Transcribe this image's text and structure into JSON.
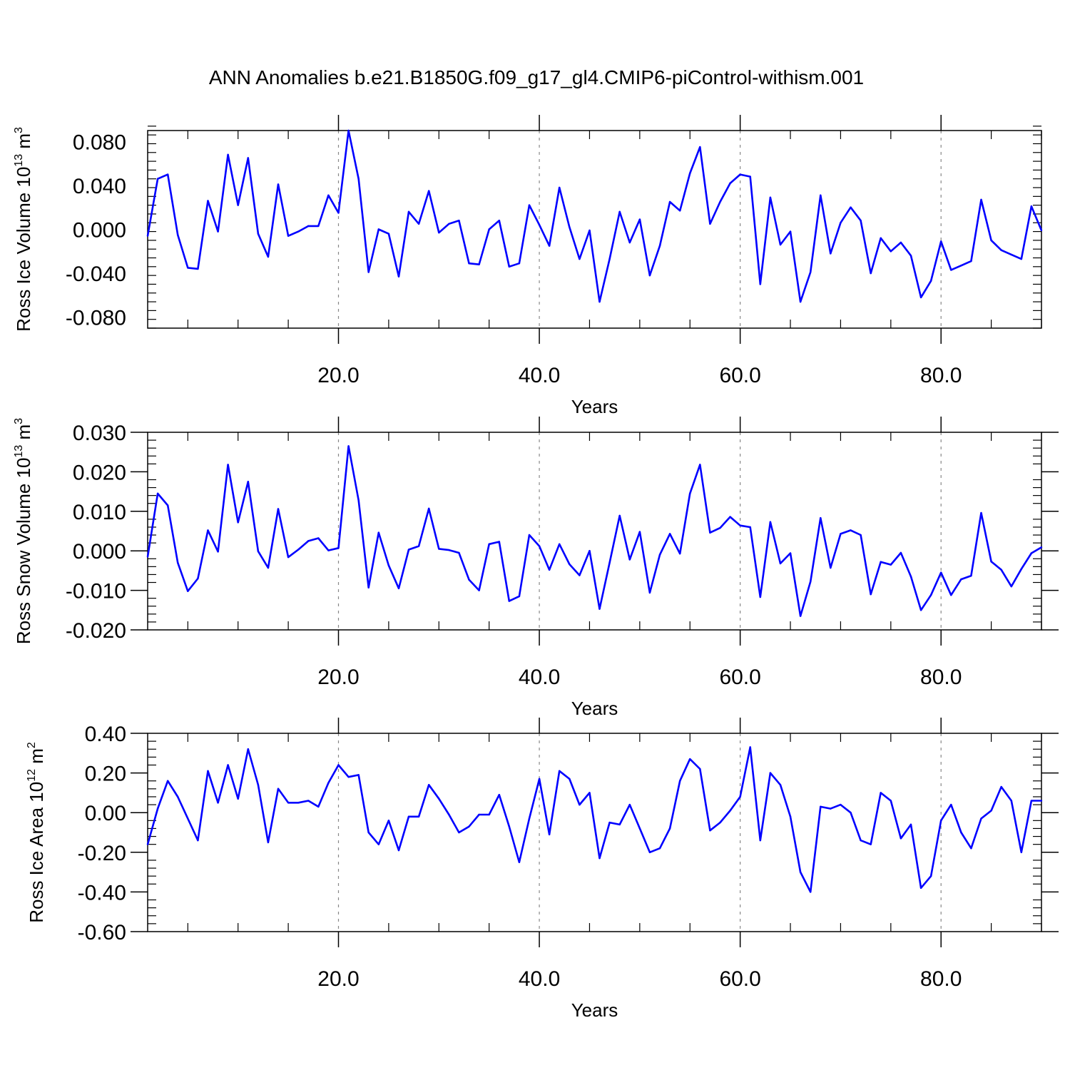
{
  "title": "ANN Anomalies b.e21.B1850G.f09_g17_gl4.CMIP6-piControl-withism.001",
  "colors": {
    "series": "#0000ff",
    "axis": "#000000",
    "grid": "#888888"
  },
  "chart_data": [
    {
      "type": "line",
      "ylabel": "Ross Ice Volume 10",
      "ylabel_exp": "13",
      "ylabel_unit": " m",
      "ylabel_unit_exp": "3",
      "xlabel": "Years",
      "xlim": [
        1,
        90
      ],
      "ylim": [
        -0.09,
        0.09
      ],
      "x_tick_values": [
        20,
        40,
        60,
        80
      ],
      "x_tick_labels": [
        "20.0",
        "40.0",
        "60.0",
        "80.0"
      ],
      "y_tick_values": [
        -0.08,
        -0.04,
        0.0,
        0.04,
        0.08
      ],
      "y_tick_labels": [
        "-0.080",
        "-0.040",
        "0.000",
        "0.040",
        "0.080"
      ],
      "grid": "dashed vertical lines at 20, 40, 60, 80",
      "x_start": 1,
      "values": [
        -0.006,
        0.046,
        0.05,
        -0.005,
        -0.035,
        -0.036,
        0.026,
        -0.002,
        0.068,
        0.022,
        0.065,
        -0.004,
        -0.025,
        0.041,
        -0.006,
        -0.002,
        0.003,
        0.003,
        0.031,
        0.015,
        0.09,
        0.046,
        -0.039,
        0.0,
        -0.004,
        -0.043,
        0.016,
        0.005,
        0.035,
        -0.003,
        0.005,
        0.008,
        -0.031,
        -0.032,
        0.0,
        0.008,
        -0.034,
        -0.031,
        0.022,
        0.004,
        -0.015,
        0.038,
        0.002,
        -0.027,
        -0.001,
        -0.066,
        -0.027,
        0.016,
        -0.012,
        0.009,
        -0.042,
        -0.015,
        0.025,
        0.017,
        0.051,
        0.075,
        0.005,
        0.025,
        0.042,
        0.05,
        0.048,
        -0.05,
        0.029,
        -0.014,
        -0.002,
        -0.066,
        -0.039,
        0.031,
        -0.022,
        0.006,
        0.02,
        0.008,
        -0.04,
        -0.008,
        -0.02,
        -0.012,
        -0.024,
        -0.062,
        -0.047,
        -0.011,
        -0.037,
        -0.033,
        -0.029,
        0.027,
        -0.01,
        -0.019,
        -0.023,
        -0.027,
        0.021,
        -0.001
      ]
    },
    {
      "type": "line",
      "ylabel": "Ross Snow Volume 10",
      "ylabel_exp": "13",
      "ylabel_unit": " m",
      "ylabel_unit_exp": "3",
      "xlabel": "Years",
      "xlim": [
        1,
        90
      ],
      "ylim": [
        -0.02,
        0.03
      ],
      "x_tick_values": [
        20,
        40,
        60,
        80
      ],
      "x_tick_labels": [
        "20.0",
        "40.0",
        "60.0",
        "80.0"
      ],
      "y_tick_values": [
        -0.02,
        -0.01,
        0.0,
        0.01,
        0.02,
        0.03
      ],
      "y_tick_labels": [
        "-0.020",
        "-0.010",
        "0.000",
        "0.010",
        "0.020",
        "0.030"
      ],
      "grid": "dashed vertical lines at 20, 40, 60, 80",
      "x_start": 1,
      "values": [
        -0.0015,
        0.0145,
        0.0115,
        -0.003,
        -0.0102,
        -0.007,
        0.0052,
        -0.0002,
        0.0218,
        0.0072,
        0.0175,
        -0.0001,
        -0.0043,
        0.0106,
        -0.0016,
        0.0003,
        0.0025,
        0.0032,
        0.0001,
        0.0007,
        0.0265,
        0.0128,
        -0.0093,
        0.0046,
        -0.0037,
        -0.0095,
        0.0003,
        0.0012,
        0.0107,
        0.0005,
        0.0002,
        -0.0005,
        -0.0073,
        -0.01,
        0.0017,
        0.0023,
        -0.0127,
        -0.0115,
        0.004,
        0.0012,
        -0.0048,
        0.0017,
        -0.0034,
        -0.0062,
        0.0,
        -0.0147,
        -0.003,
        0.0089,
        -0.0022,
        0.0048,
        -0.0106,
        -0.001,
        0.0043,
        -0.0007,
        0.0145,
        0.0218,
        0.0046,
        0.0058,
        0.0086,
        0.0064,
        0.006,
        -0.0117,
        0.0073,
        -0.0032,
        -0.0006,
        -0.0165,
        -0.0078,
        0.0083,
        -0.0043,
        0.0043,
        0.0052,
        0.004,
        -0.011,
        -0.0028,
        -0.0035,
        -0.0005,
        -0.0065,
        -0.015,
        -0.0112,
        -0.0055,
        -0.0112,
        -0.0072,
        -0.0063,
        0.0096,
        -0.0027,
        -0.0048,
        -0.009,
        -0.0046,
        -0.0006,
        0.0009
      ]
    },
    {
      "type": "line",
      "ylabel": "Ross Ice Area 10",
      "ylabel_exp": "12",
      "ylabel_unit": " m",
      "ylabel_unit_exp": "2",
      "xlabel": "Years",
      "xlim": [
        1,
        90
      ],
      "ylim": [
        -0.6,
        0.4
      ],
      "x_tick_values": [
        20,
        40,
        60,
        80
      ],
      "x_tick_labels": [
        "20.0",
        "40.0",
        "60.0",
        "80.0"
      ],
      "y_tick_values": [
        -0.6,
        -0.4,
        -0.2,
        0.0,
        0.2,
        0.4
      ],
      "y_tick_labels": [
        "-0.60",
        "-0.40",
        "-0.20",
        "0.00",
        "0.20",
        "0.40"
      ],
      "grid": "dashed vertical lines at 20, 40, 60, 80",
      "x_start": 1,
      "values": [
        -0.16,
        0.02,
        0.16,
        0.08,
        -0.03,
        -0.14,
        0.21,
        0.05,
        0.24,
        0.07,
        0.32,
        0.14,
        -0.15,
        0.12,
        0.05,
        0.05,
        0.06,
        0.03,
        0.15,
        0.24,
        0.18,
        0.19,
        -0.1,
        -0.16,
        -0.04,
        -0.19,
        -0.02,
        -0.02,
        0.14,
        0.07,
        -0.01,
        -0.1,
        -0.07,
        -0.01,
        -0.01,
        0.09,
        -0.07,
        -0.25,
        -0.03,
        0.17,
        -0.11,
        0.21,
        0.17,
        0.04,
        0.1,
        -0.23,
        -0.05,
        -0.06,
        0.04,
        -0.08,
        -0.2,
        -0.18,
        -0.08,
        0.16,
        0.27,
        0.22,
        -0.09,
        -0.05,
        0.01,
        0.08,
        0.33,
        -0.14,
        0.2,
        0.14,
        -0.02,
        -0.3,
        -0.4,
        0.03,
        0.02,
        0.04,
        0.0,
        -0.14,
        -0.16,
        0.1,
        0.06,
        -0.13,
        -0.06,
        -0.38,
        -0.32,
        -0.04,
        0.04,
        -0.1,
        -0.18,
        -0.03,
        0.01,
        0.13,
        0.06,
        -0.2,
        0.06,
        0.06
      ]
    }
  ]
}
